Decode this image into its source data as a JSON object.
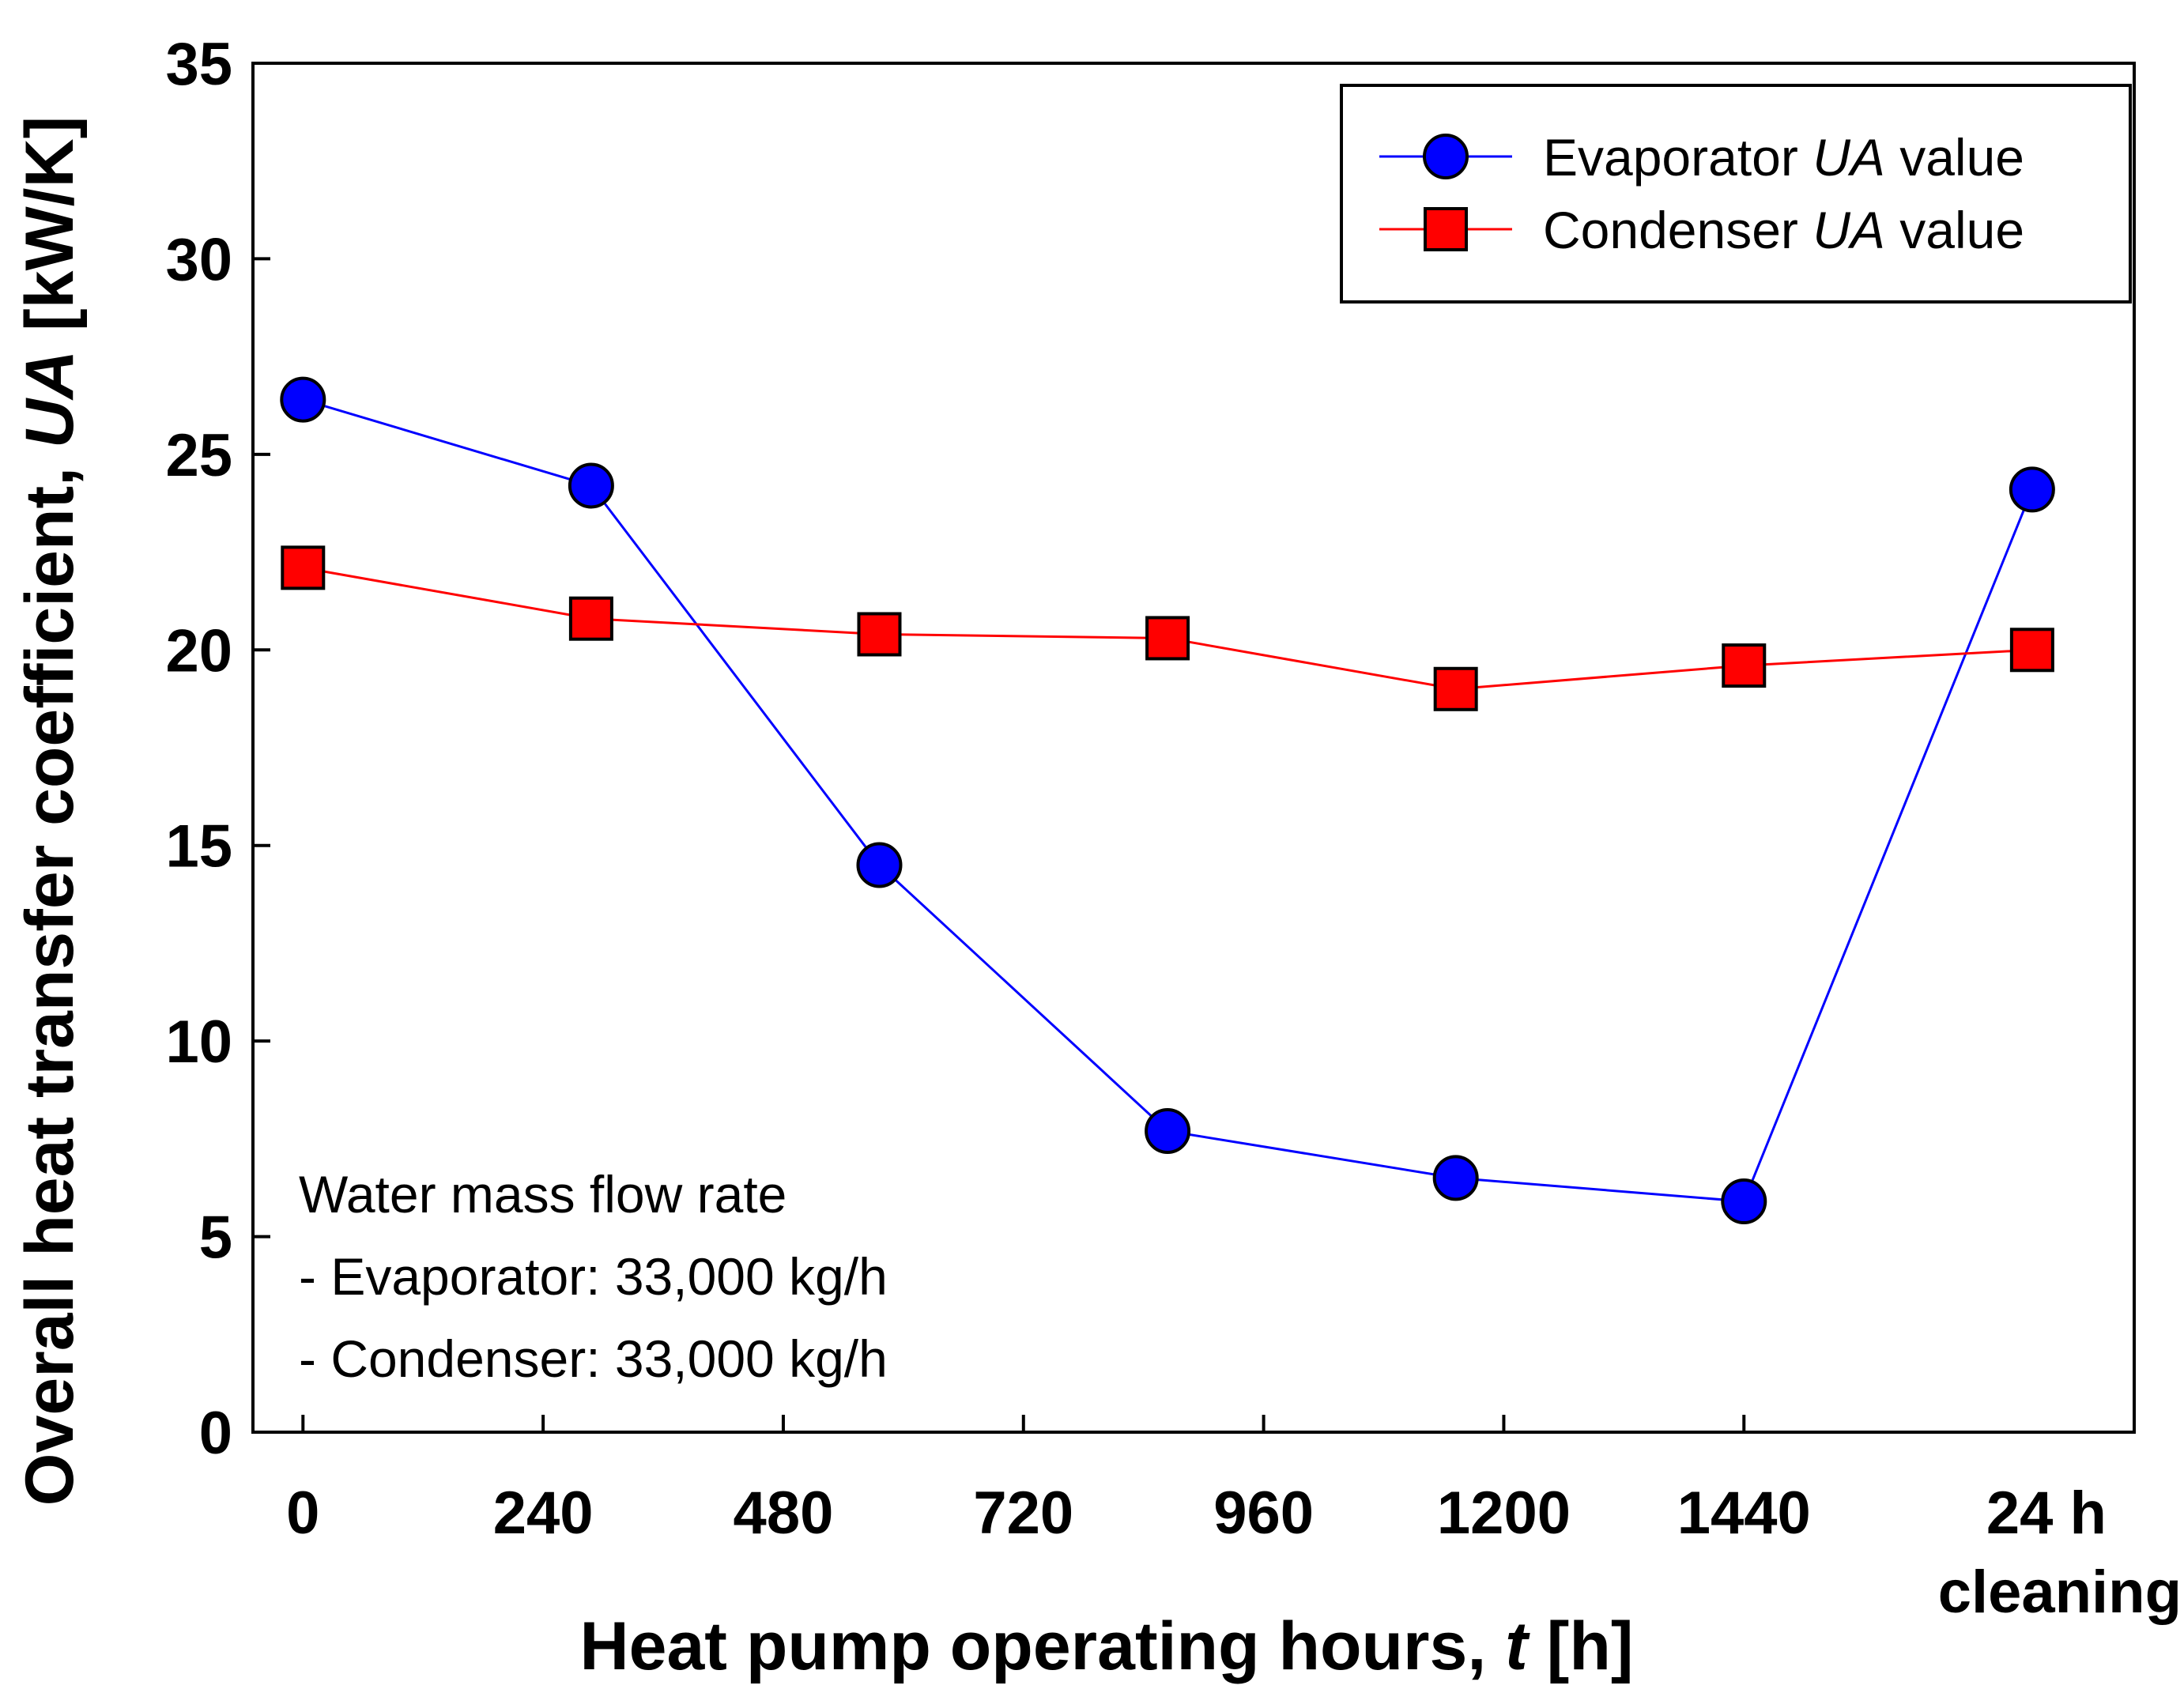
{
  "chart_data": {
    "type": "line",
    "x_label_prefix": "Heat pump operating hours, ",
    "x_label_var": "t",
    "x_label_unit": " [h]",
    "y_label_prefix": "Overall heat transfer coefficient, ",
    "y_label_var": "UA",
    "y_label_unit": " [kW/K]",
    "ylim": [
      0,
      35
    ],
    "y_ticks": [
      "0",
      "5",
      "10",
      "15",
      "20",
      "25",
      "30",
      "35"
    ],
    "x_tick_labels": [
      "0",
      "240",
      "480",
      "720",
      "960",
      "1200",
      "1440"
    ],
    "x_tick_extra_line1": "24 h",
    "x_tick_extra_line2": "cleaning",
    "xlim": [
      -50,
      1830
    ],
    "x_tick_values": [
      0,
      240,
      480,
      720,
      960,
      1200,
      1440
    ],
    "x_tick_extra_value": 1728,
    "grid": false,
    "legend_position": "top-right",
    "series": [
      {
        "name_prefix": "Evaporator ",
        "name_var": "UA",
        "name_suffix": " value",
        "color": "#0000ff",
        "fill": "#0000ff",
        "marker": "circle",
        "x": [
          0,
          288,
          576,
          864,
          1152,
          1440,
          1728
        ],
        "values": [
          26.4,
          24.2,
          14.5,
          7.7,
          6.5,
          5.9,
          24.1
        ]
      },
      {
        "name_prefix": "Condenser ",
        "name_var": "UA",
        "name_suffix": " value",
        "color": "#ff0000",
        "fill": "#ff0000",
        "marker": "square",
        "x": [
          0,
          288,
          576,
          864,
          1152,
          1440,
          1728
        ],
        "values": [
          22.1,
          20.8,
          20.4,
          20.3,
          19.0,
          19.6,
          20.0
        ]
      }
    ],
    "annotation": {
      "line1": "Water mass flow rate",
      "line2": "- Evaporator: 33,000 kg/h",
      "line3": "- Condenser: 33,000 kg/h"
    }
  }
}
